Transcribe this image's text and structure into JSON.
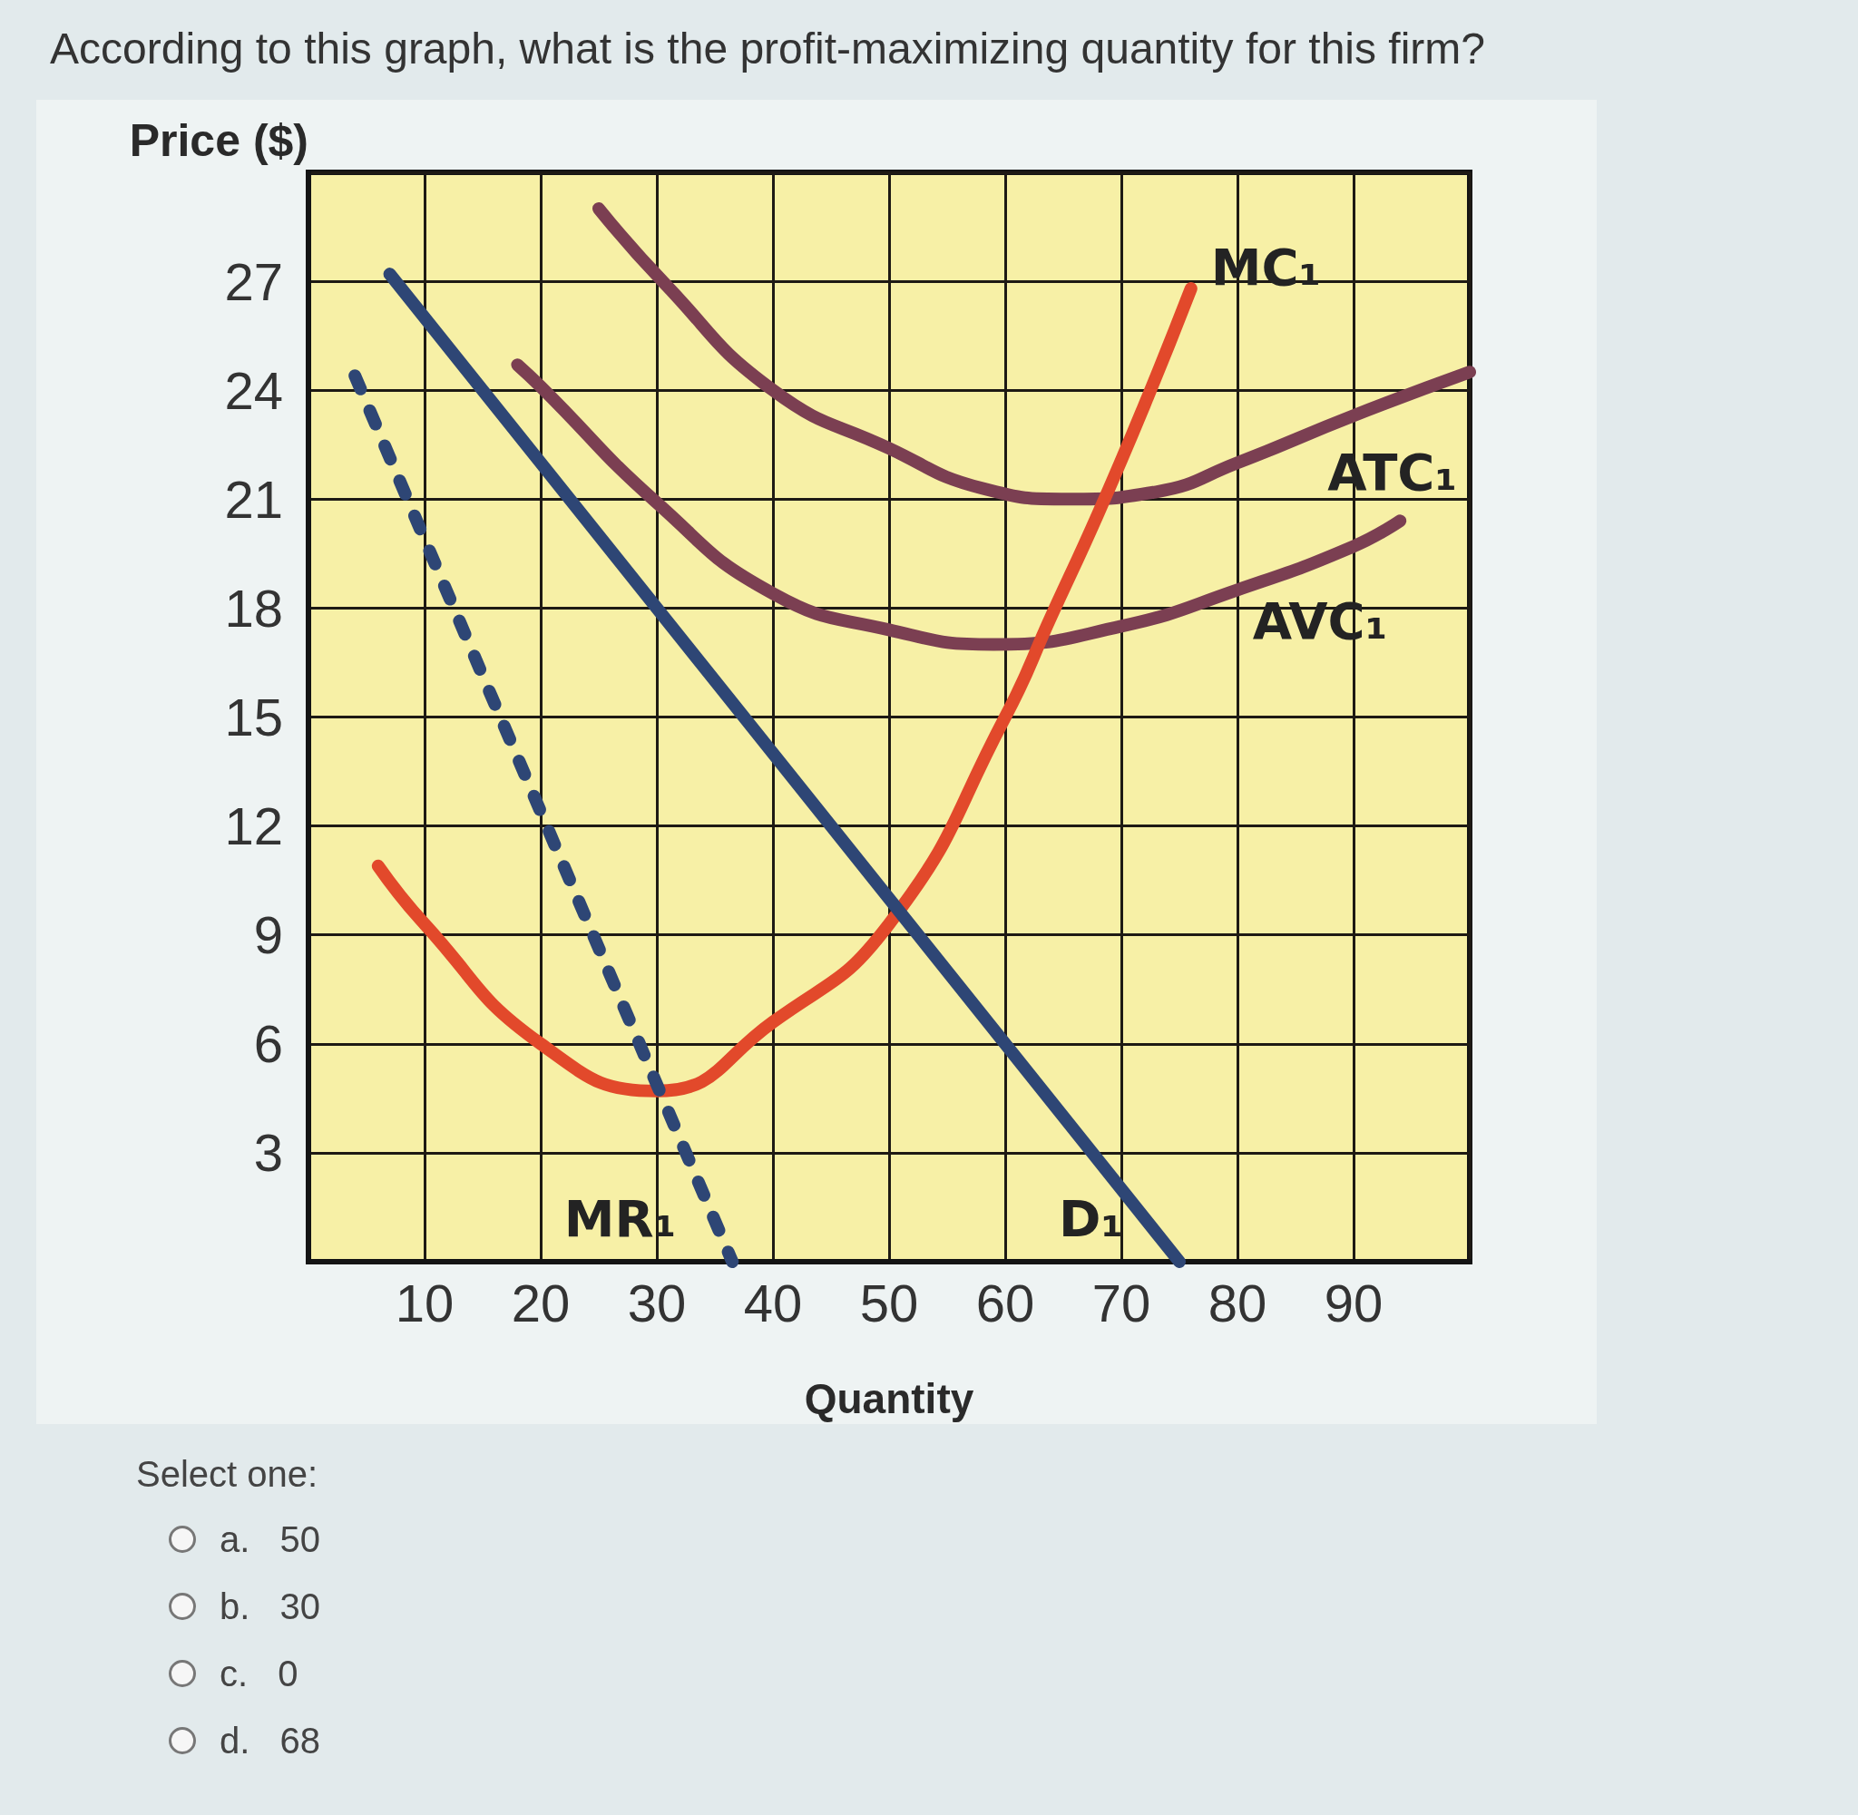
{
  "chart_data": {
    "type": "line",
    "title": "According to this graph, what is the profit-maximizing quantity for this firm?",
    "xlabel": "Quantity",
    "ylabel": "Price ($)",
    "annotations": [
      "Select one:",
      "a. 50",
      "b. 30",
      "c. 0",
      "d. 68"
    ],
    "xlim": [
      0,
      100
    ],
    "xticks": [
      {
        "value": 0,
        "label": null
      },
      10,
      20,
      30,
      40,
      50,
      60,
      70,
      80,
      90,
      {
        "value": 100,
        "label": null
      }
    ],
    "ylim": [
      0,
      30
    ],
    "yticks": [
      {
        "value": 0,
        "label": null
      },
      3,
      6,
      9,
      12,
      15,
      18,
      21,
      24,
      27,
      {
        "value": 30,
        "label": null
      }
    ],
    "grid": true,
    "marker": "none",
    "line_style": "solid",
    "series": [
      {
        "name": "ATC₁",
        "color": "#7b3f52",
        "x": [
          25,
          30.5,
          40,
          50,
          58,
          65.5,
          73,
          80,
          90,
          100
        ],
        "values": [
          29,
          27,
          24,
          22.4,
          21.3,
          21,
          21.2,
          22,
          23.3,
          24.5
        ]
      },
      {
        "name": "AVC₁",
        "color": "#7b3f52",
        "x": [
          18,
          20,
          30,
          40,
          50,
          59,
          70,
          80,
          90,
          94
        ],
        "values": [
          24.7,
          24.1,
          20.9,
          18.4,
          17.4,
          17,
          17.5,
          18.5,
          19.7,
          20.4
        ]
      },
      {
        "name": "MC₁",
        "color": "#e2492b",
        "x": [
          6,
          10,
          20,
          30,
          40,
          50,
          60,
          64,
          68,
          72,
          76
        ],
        "values": [
          10.9,
          9.3,
          6,
          4.7,
          6.6,
          9.3,
          15,
          17.8,
          20.6,
          23.6,
          26.8
        ]
      },
      {
        "name": "D₁",
        "color": "#2e4675",
        "x": [
          7,
          75
        ],
        "values": [
          27.2,
          0
        ]
      },
      {
        "name": "MR₁",
        "color": "#2e4675",
        "x": [
          4,
          36.5
        ],
        "values": [
          24.4,
          0
        ],
        "line_style": "dashed"
      }
    ]
  }
}
